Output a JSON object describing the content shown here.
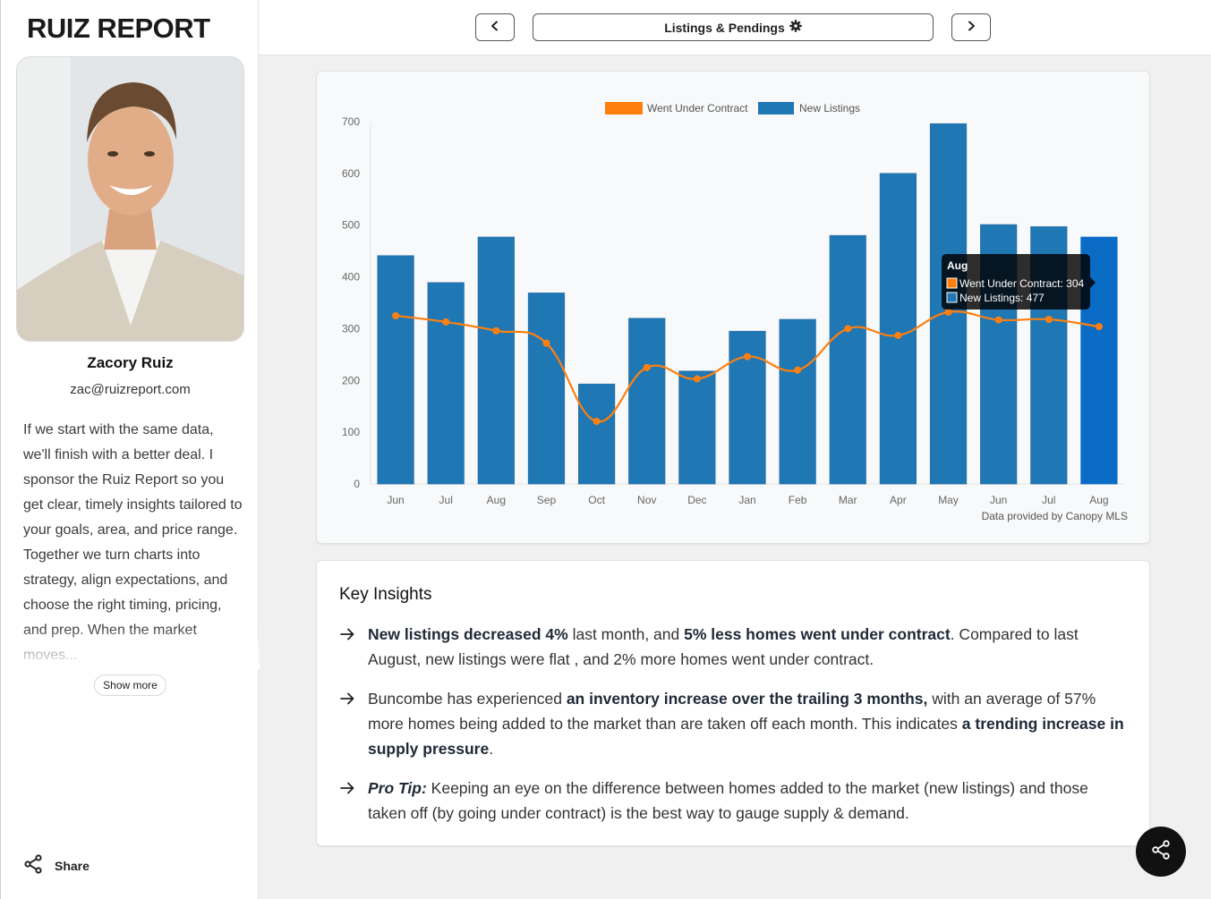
{
  "sidebar": {
    "logo": "RUIZ REPORT",
    "agent_name": "Zacory Ruiz",
    "agent_email": "zac@ruizreport.com",
    "bio": "If we start with the same data, we'll finish with a better deal. I sponsor the Ruiz Report so you get clear, timely insights tailored to your goals, area, and price range. Together we turn charts into strategy, align expectations, and choose the right timing, pricing, and prep. When the market moves...",
    "show_more_label": "Show more",
    "share_label": "Share"
  },
  "topbar": {
    "prev_icon": "chevron-left-icon",
    "next_icon": "chevron-right-icon",
    "title": "Listings & Pendings",
    "title_icon": "gear-icon"
  },
  "chart_data": {
    "type": "bar",
    "categories": [
      "Jun",
      "Jul",
      "Aug",
      "Sep",
      "Oct",
      "Nov",
      "Dec",
      "Jan",
      "Feb",
      "Mar",
      "Apr",
      "May",
      "Jun",
      "Jul",
      "Aug"
    ],
    "series": [
      {
        "name": "Went Under Contract",
        "type": "line",
        "color": "#ff7f0e",
        "values": [
          325,
          313,
          296,
          272,
          121,
          225,
          203,
          246,
          220,
          300,
          287,
          332,
          317,
          318,
          304
        ]
      },
      {
        "name": "New Listings",
        "type": "bar",
        "color": "#1f77b4",
        "values": [
          441,
          389,
          477,
          369,
          193,
          320,
          218,
          295,
          318,
          480,
          600,
          696,
          501,
          497,
          477
        ]
      }
    ],
    "ylim": [
      0,
      700
    ],
    "yticks": [
      0,
      100,
      200,
      300,
      400,
      500,
      600,
      700
    ],
    "legend_position": "top-center",
    "highlighted_index": 14,
    "source_note": "Data provided by Canopy MLS",
    "tooltip": {
      "title": "Aug",
      "lines": [
        "Went Under Contract: 304",
        "New Listings: 477"
      ]
    }
  },
  "insights": {
    "heading": "Key Insights",
    "items": [
      [
        {
          "b": true,
          "t": "New listings decreased 4%"
        },
        {
          "b": false,
          "t": " last month, and "
        },
        {
          "b": true,
          "t": "5% less homes went under contract"
        },
        {
          "b": false,
          "t": ". Compared to last August, new listings were flat , and 2% more homes went under contract."
        }
      ],
      [
        {
          "b": false,
          "t": "Buncombe has experienced "
        },
        {
          "b": true,
          "t": "an inventory increase over the trailing 3 months,"
        },
        {
          "b": false,
          "t": " with an average of 57% more homes being added to the market than are taken off each month. This indicates "
        },
        {
          "b": true,
          "t": "a trending increase in supply pressure"
        },
        {
          "b": false,
          "t": "."
        }
      ],
      [
        {
          "b": true,
          "i": true,
          "t": "Pro Tip:"
        },
        {
          "b": false,
          "t": " Keeping an eye on the difference between homes added to the market (new listings) and those taken off (by going under contract) is the best way to gauge supply & demand."
        }
      ]
    ]
  },
  "fab_icon": "share-icon"
}
